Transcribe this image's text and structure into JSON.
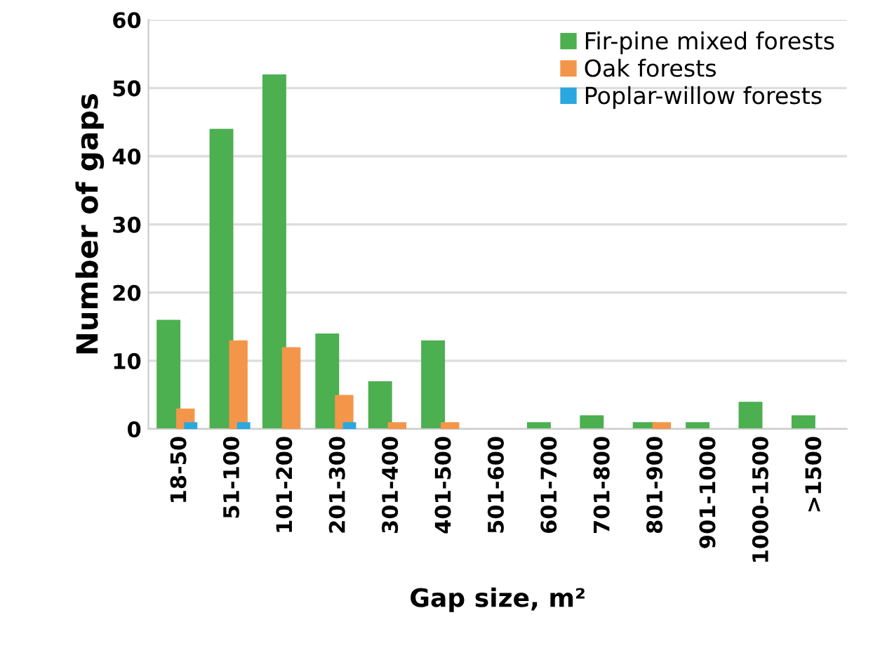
{
  "chart_data": {
    "type": "bar",
    "xlabel": "Gap size, m²",
    "ylabel": "Number of gaps",
    "categories": [
      "18-50",
      "51-100",
      "101-200",
      "201-300",
      "301-400",
      "401-500",
      "501-600",
      "601-700",
      "701-800",
      "801-900",
      "901-1000",
      "1000-1500",
      ">1500"
    ],
    "series": [
      {
        "name": "Fir-pine mixed forests",
        "color": "#4caf50",
        "values": [
          16,
          44,
          52,
          14,
          7,
          13,
          0,
          1,
          2,
          1,
          1,
          4,
          2
        ]
      },
      {
        "name": "Oak forests",
        "color": "#f4964a",
        "values": [
          3,
          13,
          12,
          5,
          1,
          1,
          0,
          0,
          0,
          1,
          0,
          0,
          0
        ]
      },
      {
        "name": "Poplar-willow forests",
        "color": "#29a8e0",
        "values": [
          1,
          1,
          0,
          1,
          0,
          0,
          0,
          0,
          0,
          0,
          0,
          0,
          0
        ]
      }
    ],
    "ylim": [
      0,
      60
    ],
    "yticks": [
      0,
      10,
      20,
      30,
      40,
      50,
      60
    ],
    "grid": "y",
    "legend": "top right"
  }
}
